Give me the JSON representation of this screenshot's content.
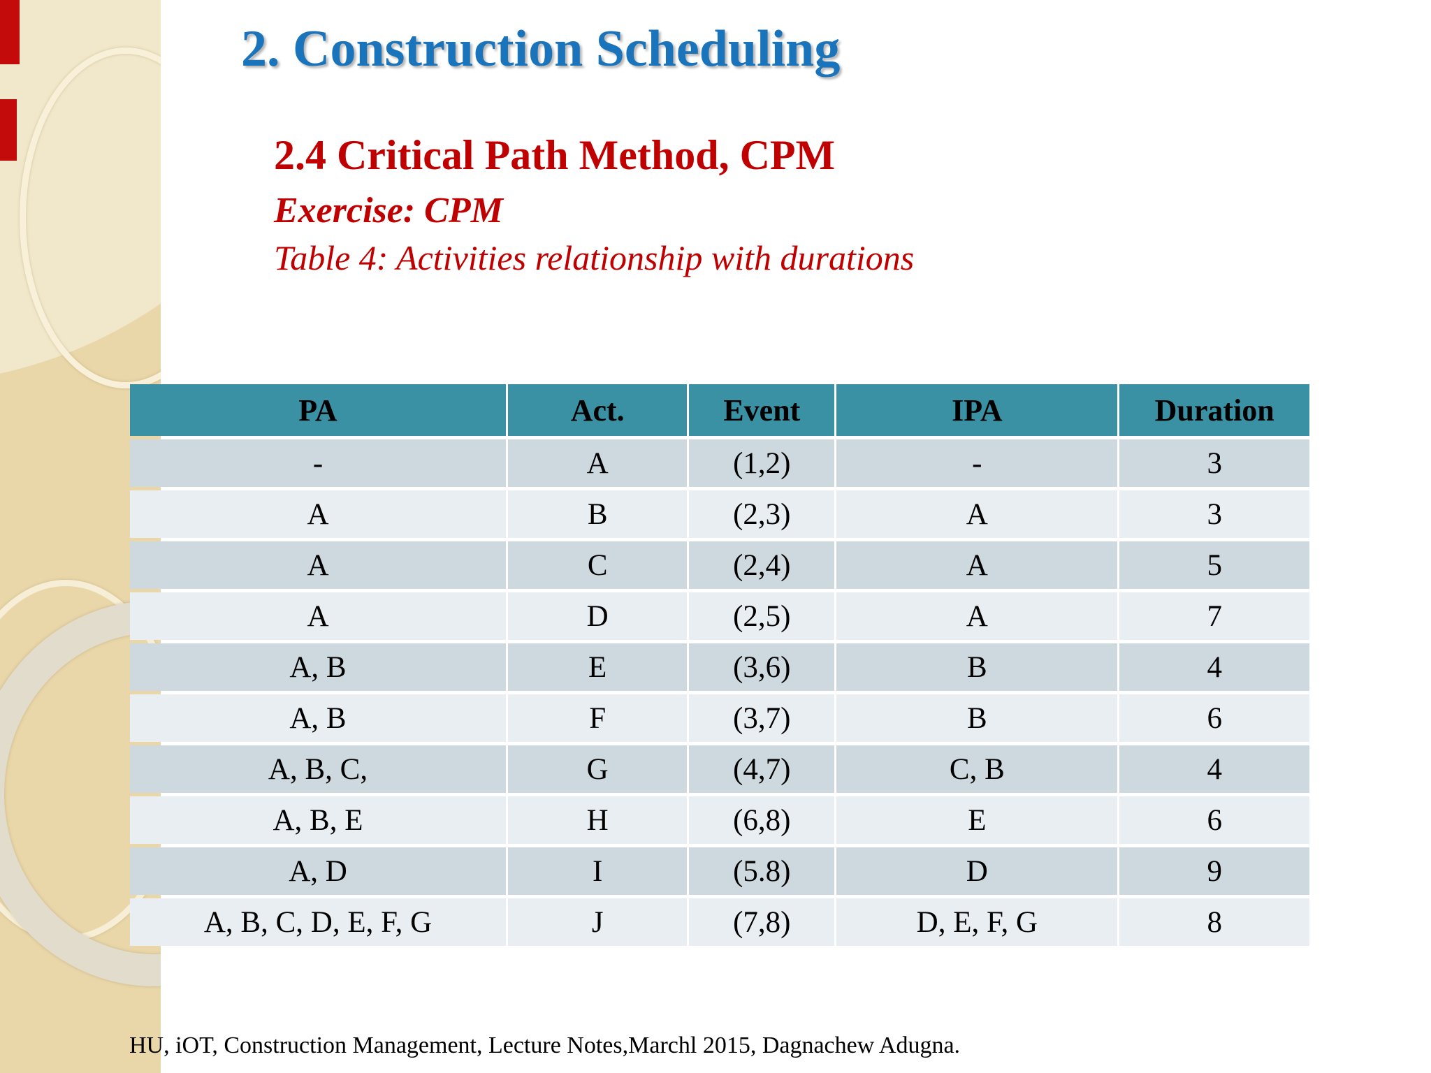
{
  "slide": {
    "title": "2. Construction Scheduling",
    "section_heading": "2.4 Critical Path Method, CPM",
    "exercise_label": "Exercise: CPM",
    "table_caption": "Table 4: Activities relationship with durations",
    "footer": "HU, iOT, Construction Management, Lecture Notes,Marchl 2015, Dagnachew Adugna."
  },
  "colors": {
    "title_blue": "#1a74bb",
    "heading_red": "#c00000",
    "table_header_teal": "#3a91a4",
    "row_odd": "#cdd9de",
    "row_even": "#e9eef2",
    "sidebar_beige": "#e9d7a9",
    "sidebar_light_beige": "#f1e8cb",
    "red_mark": "#c30b0b"
  },
  "table": {
    "columns": [
      "PA",
      "Act.",
      "Event",
      "IPA",
      "Duration"
    ],
    "rows": [
      [
        "-",
        "A",
        "(1,2)",
        "-",
        "3"
      ],
      [
        "A",
        "B",
        "(2,3)",
        "A",
        "3"
      ],
      [
        "A",
        "C",
        "(2,4)",
        "A",
        "5"
      ],
      [
        "A",
        "D",
        "(2,5)",
        "A",
        "7"
      ],
      [
        "A, B",
        "E",
        "(3,6)",
        "B",
        "4"
      ],
      [
        "A, B",
        "F",
        "(3,7)",
        "B",
        "6"
      ],
      [
        "A, B, C,",
        "G",
        "(4,7)",
        "C, B",
        "4"
      ],
      [
        "A, B, E",
        "H",
        "(6,8)",
        "E",
        "6"
      ],
      [
        "A, D",
        "I",
        "(5.8)",
        "D",
        "9"
      ],
      [
        "A, B, C, D, E, F, G",
        "J",
        "(7,8)",
        "D,  E,  F,  G",
        "8"
      ]
    ]
  }
}
